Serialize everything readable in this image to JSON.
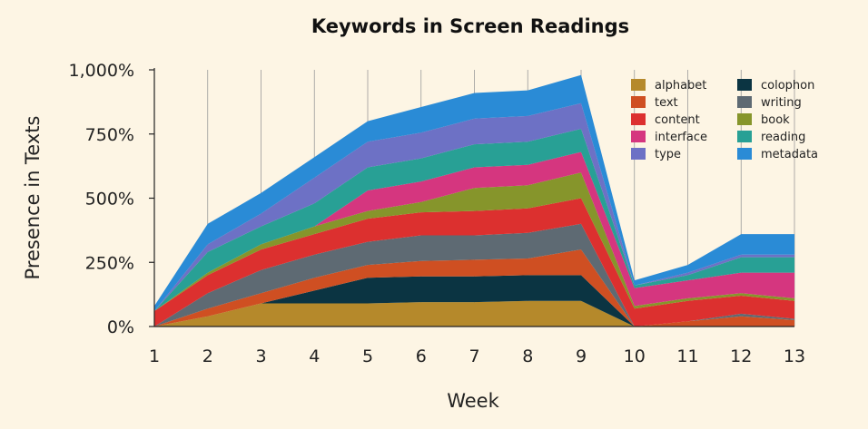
{
  "chart_data": {
    "type": "area",
    "stacked": true,
    "title": "Keywords in Screen Readings",
    "xlabel": "Week",
    "ylabel": "Presence in Texts",
    "x": [
      1,
      2,
      3,
      4,
      5,
      6,
      7,
      8,
      9,
      10,
      11,
      12,
      13
    ],
    "x_ticks": [
      "1",
      "2",
      "3",
      "4",
      "5",
      "6",
      "7",
      "8",
      "9",
      "10",
      "11",
      "12",
      "13"
    ],
    "ylim": [
      0,
      1000
    ],
    "y_ticks": [
      "0%",
      "250%",
      "500%",
      "750%",
      "1,000%"
    ],
    "y_tick_values": [
      0,
      250,
      500,
      750,
      1000
    ],
    "grid": "vertical",
    "legend_position": "top-right",
    "series": [
      {
        "name": "alphabet",
        "color": "#b5892b",
        "values": [
          0,
          40,
          90,
          90,
          90,
          95,
          95,
          100,
          100,
          0,
          0,
          0,
          0
        ]
      },
      {
        "name": "colophon",
        "color": "#0b3442",
        "values": [
          0,
          0,
          0,
          50,
          100,
          100,
          100,
          100,
          100,
          0,
          0,
          0,
          0
        ]
      },
      {
        "name": "text",
        "color": "#cf4f22",
        "values": [
          0,
          30,
          40,
          50,
          50,
          60,
          65,
          65,
          100,
          0,
          20,
          40,
          25
        ]
      },
      {
        "name": "writing",
        "color": "#5e6a73",
        "values": [
          0,
          60,
          90,
          90,
          90,
          100,
          95,
          100,
          100,
          0,
          0,
          10,
          5
        ]
      },
      {
        "name": "content",
        "color": "#dc302f",
        "values": [
          60,
          70,
          80,
          80,
          90,
          90,
          95,
          95,
          100,
          70,
          80,
          70,
          70
        ]
      },
      {
        "name": "book",
        "color": "#86952b",
        "values": [
          0,
          10,
          20,
          30,
          30,
          40,
          90,
          90,
          100,
          10,
          10,
          10,
          10
        ]
      },
      {
        "name": "interface",
        "color": "#d5367f",
        "values": [
          0,
          0,
          0,
          0,
          80,
          80,
          80,
          80,
          80,
          70,
          70,
          80,
          100
        ]
      },
      {
        "name": "reading",
        "color": "#28a095",
        "values": [
          0,
          80,
          70,
          90,
          90,
          90,
          90,
          90,
          90,
          10,
          20,
          60,
          60
        ]
      },
      {
        "name": "type",
        "color": "#6d71c5",
        "values": [
          0,
          30,
          50,
          100,
          100,
          100,
          100,
          100,
          100,
          0,
          10,
          10,
          10
        ]
      },
      {
        "name": "metadata",
        "color": "#2a8bd6",
        "values": [
          20,
          80,
          80,
          80,
          80,
          100,
          100,
          100,
          110,
          20,
          30,
          80,
          80
        ]
      }
    ],
    "legend_order": [
      "alphabet",
      "text",
      "content",
      "interface",
      "type",
      "colophon",
      "writing",
      "book",
      "reading",
      "metadata"
    ]
  }
}
